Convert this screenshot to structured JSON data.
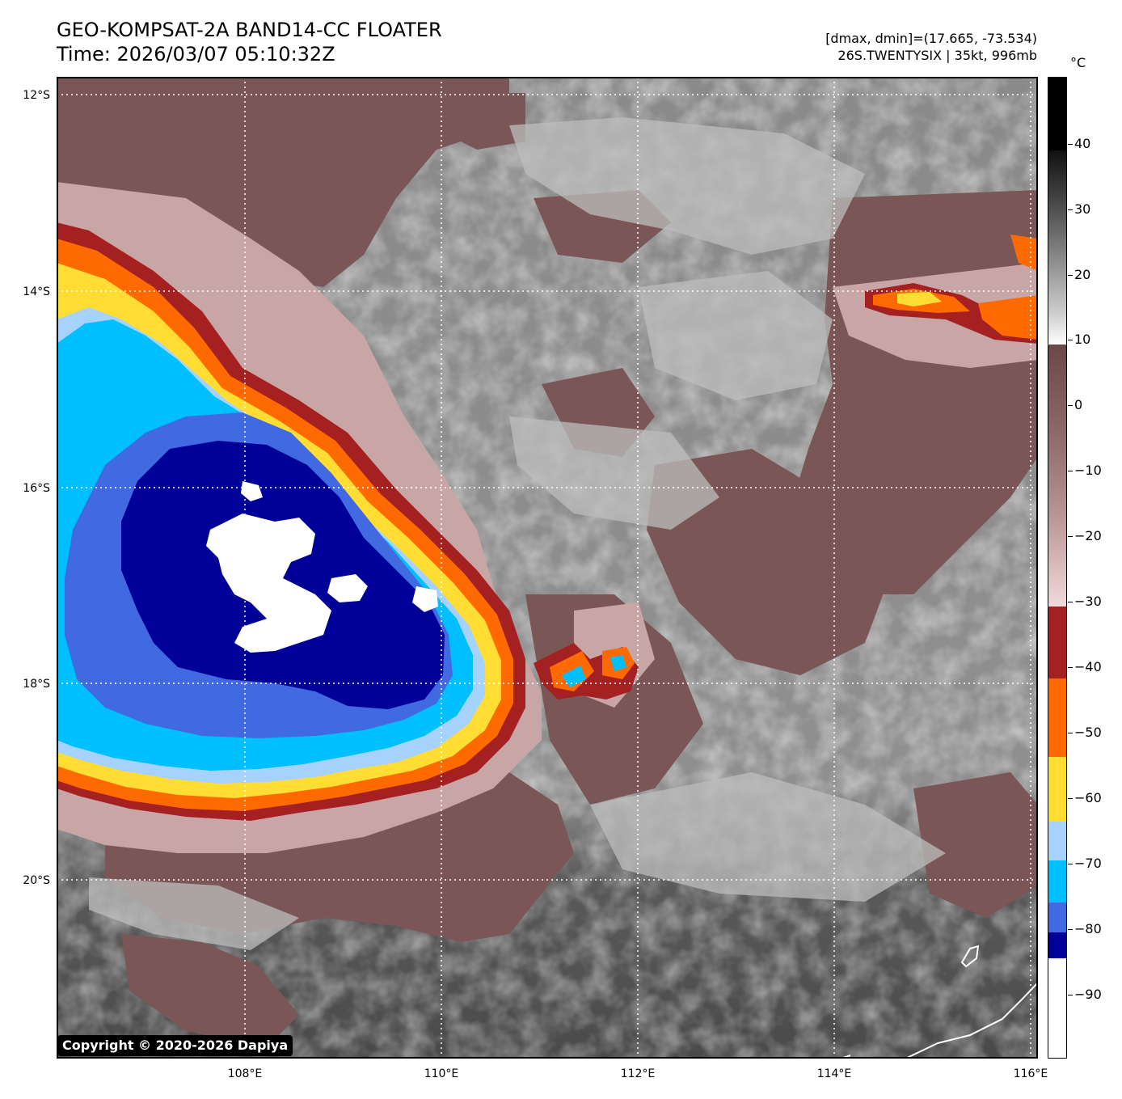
{
  "title": {
    "line1": "GEO-KOMPSAT-2A BAND14-CC FLOATER",
    "line2": "Time: 2026/03/07 05:10:32Z"
  },
  "info": {
    "range": "[dmax, dmin]=(17.665, -73.534)",
    "storm": "26S.TWENTYSIX | 35kt, 996mb"
  },
  "copyright": "Copyright © 2020-2026 Dapiya",
  "lat_labels": [
    "12°S",
    "14°S",
    "16°S",
    "18°S",
    "20°S"
  ],
  "lon_labels": [
    "108°E",
    "110°E",
    "112°E",
    "114°E",
    "116°E"
  ],
  "colorbar": {
    "unit": "°C",
    "tick_labels": [
      "40",
      "30",
      "20",
      "10",
      "0",
      "−10",
      "−20",
      "−30",
      "−40",
      "−50",
      "−60",
      "−70",
      "−80",
      "−90"
    ],
    "range": [
      -100,
      50
    ],
    "color_steps": [
      {
        "from": -100,
        "to": -85,
        "color": "#ffffff"
      },
      {
        "from": -85,
        "to": -81,
        "color": "#000099"
      },
      {
        "from": -81,
        "to": -76,
        "color": "#4169e1"
      },
      {
        "from": -76,
        "to": -69,
        "color": "#00bfff"
      },
      {
        "from": -69,
        "to": -64,
        "color": "#a6d2ff"
      },
      {
        "from": -64,
        "to": -54,
        "color": "#ffdd33"
      },
      {
        "from": -54,
        "to": -42,
        "color": "#ff6a00"
      },
      {
        "from": -42,
        "to": -31,
        "color": "#a52020"
      }
    ]
  },
  "colors": {
    "brown": "#7a5656",
    "gray": "#8a8a8a",
    "light_gray": "#bdbdbd",
    "dark_gray": "#4a4a4a",
    "pink": "#c9a6a6",
    "red": "#a52020",
    "orange": "#ff6a00",
    "yellow": "#ffdd33",
    "light_blue": "#a6d2ff",
    "cyan": "#00bfff",
    "blue": "#4169e1",
    "navy": "#000099",
    "white": "#ffffff",
    "coast": "#ffffff"
  }
}
